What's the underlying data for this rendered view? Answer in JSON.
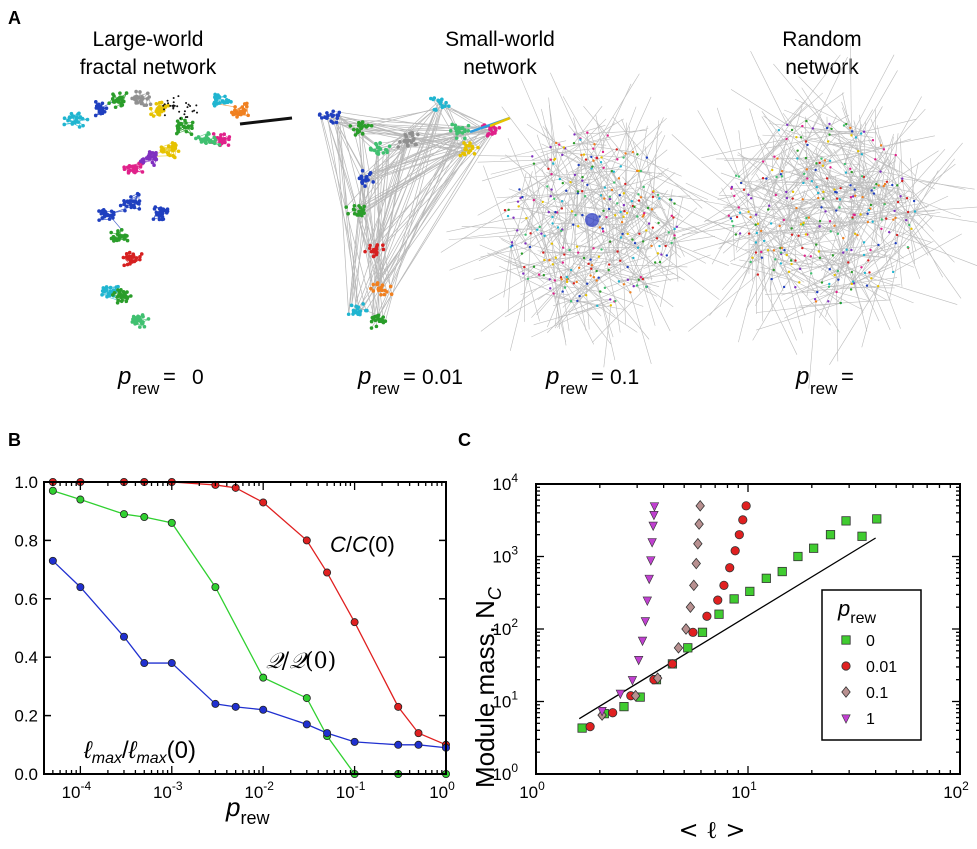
{
  "panel_labels": {
    "a": "A",
    "b": "B",
    "c": "C"
  },
  "panel_a": {
    "networks": [
      {
        "title_line1": "Large-world",
        "title_line2": "fractal network",
        "p_symbol": "p",
        "p_sub": "rew",
        "p_eq": "=",
        "p_value": "0"
      },
      {
        "title_line1": "Small-world",
        "title_line2": "network",
        "p_symbol": "p",
        "p_sub": "rew",
        "p_eq": "=",
        "p_value": "0.01"
      },
      {
        "title_line1": "",
        "title_line2": "",
        "p_symbol": "p",
        "p_sub": "rew",
        "p_eq": "=",
        "p_value": "0.1"
      },
      {
        "title_line1": "Random",
        "title_line2": "network",
        "p_symbol": "p",
        "p_sub": "rew",
        "p_eq": "=",
        "p_value": ""
      }
    ],
    "colors": [
      "#e0218a",
      "#2a9d2a",
      "#1f3fbf",
      "#d62020",
      "#20b5d0",
      "#e6c200",
      "#f08020",
      "#8030c0",
      "#40c070",
      "#909090"
    ]
  },
  "chart_data": [
    {
      "type": "line",
      "xscale": "log",
      "xlim": [
        4e-05,
        1
      ],
      "ylim": [
        0,
        1
      ],
      "xlabel": "p",
      "xlabel_sub": "rew",
      "ylabel": "",
      "xticks": [
        {
          "value": 0.0001,
          "base": "10",
          "exp": "-4"
        },
        {
          "value": 0.001,
          "base": "10",
          "exp": "-3"
        },
        {
          "value": 0.01,
          "base": "10",
          "exp": "-2"
        },
        {
          "value": 0.1,
          "base": "10",
          "exp": "-1"
        },
        {
          "value": 1,
          "base": "10",
          "exp": "0"
        }
      ],
      "yticks": [
        {
          "value": 0,
          "label": "0.0"
        },
        {
          "value": 0.2,
          "label": "0.2"
        },
        {
          "value": 0.4,
          "label": "0.4"
        },
        {
          "value": 0.6,
          "label": "0.6"
        },
        {
          "value": 0.8,
          "label": "0.8"
        },
        {
          "value": 1,
          "label": "1.0"
        }
      ],
      "series": [
        {
          "key": "C",
          "color": "#e02020",
          "x": [
            5e-05,
            0.0001,
            0.0003,
            0.0005,
            0.001,
            0.003,
            0.005,
            0.01,
            0.03,
            0.05,
            0.1,
            0.3,
            0.5,
            1
          ],
          "y": [
            1.0,
            1.0,
            1.0,
            1.0,
            1.0,
            0.99,
            0.98,
            0.93,
            0.8,
            0.69,
            0.52,
            0.23,
            0.14,
            0.1
          ]
        },
        {
          "key": "Q",
          "color": "#30d030",
          "x": [
            5e-05,
            0.0001,
            0.0003,
            0.0005,
            0.001,
            0.003,
            0.01,
            0.03,
            0.05,
            0.1,
            0.3,
            1
          ],
          "y": [
            0.97,
            0.94,
            0.89,
            0.88,
            0.86,
            0.64,
            0.33,
            0.26,
            0.13,
            0.0,
            0.0,
            0.0
          ]
        },
        {
          "key": "L",
          "color": "#2030d0",
          "x": [
            5e-05,
            0.0001,
            0.0003,
            0.0005,
            0.001,
            0.003,
            0.005,
            0.01,
            0.03,
            0.05,
            0.1,
            0.3,
            0.5,
            1
          ],
          "y": [
            0.73,
            0.64,
            0.47,
            0.38,
            0.38,
            0.24,
            0.23,
            0.22,
            0.17,
            0.14,
            0.11,
            0.1,
            0.1,
            0.09
          ]
        }
      ],
      "annotations": [
        {
          "key": "C",
          "parts": [
            "C",
            "/",
            "C",
            "(0)"
          ]
        },
        {
          "key": "Q",
          "parts": [
            "𝒬",
            "/",
            "𝒬",
            "(0)"
          ]
        },
        {
          "key": "L",
          "parts": [
            "ℓ",
            "max",
            "/",
            "ℓ",
            "max",
            "(0)"
          ]
        }
      ]
    },
    {
      "type": "scatter",
      "xscale": "log",
      "yscale": "log",
      "xlim": [
        1,
        100
      ],
      "ylim": [
        1,
        10000
      ],
      "xlabel": "< ℓ >",
      "ylabel": "Module mass, N",
      "ylabel_sub": "C",
      "xticks": [
        {
          "value": 1,
          "base": "10",
          "exp": "0"
        },
        {
          "value": 10,
          "base": "10",
          "exp": "1"
        },
        {
          "value": 100,
          "base": "10",
          "exp": "2"
        }
      ],
      "yticks": [
        {
          "value": 1,
          "base": "10",
          "exp": "0"
        },
        {
          "value": 10,
          "base": "10",
          "exp": "1"
        },
        {
          "value": 100,
          "base": "10",
          "exp": "2"
        },
        {
          "value": 1000,
          "base": "10",
          "exp": "3"
        },
        {
          "value": 10000,
          "base": "10",
          "exp": "4"
        }
      ],
      "legend": {
        "title": "p",
        "title_sub": "rew",
        "position": "right"
      },
      "series": [
        {
          "name": "0",
          "marker": "square",
          "color": "#40cc30",
          "x": [
            1.65,
            2.1,
            2.6,
            3.1,
            3.7,
            4.4,
            5.2,
            6.1,
            7.3,
            8.6,
            10.2,
            12.2,
            14.5,
            17.2,
            20.4,
            24.5,
            29,
            34.5,
            40.5
          ],
          "y": [
            4.3,
            6.8,
            8.5,
            11.5,
            20,
            33,
            55,
            90,
            160,
            260,
            330,
            500,
            620,
            1000,
            1300,
            2000,
            3100,
            1900,
            3300
          ]
        },
        {
          "name": "0.01",
          "marker": "circle",
          "color": "#e02020",
          "x": [
            1.8,
            2.3,
            2.8,
            3.6,
            4.4,
            5.5,
            6.4,
            7.2,
            7.7,
            8.2,
            8.7,
            9.1,
            9.45,
            9.8
          ],
          "y": [
            4.5,
            7,
            12,
            20,
            33,
            90,
            150,
            250,
            400,
            700,
            1200,
            2000,
            3200,
            5000
          ]
        },
        {
          "name": "0.1",
          "marker": "diamond",
          "color": "#b89090",
          "x": [
            2.05,
            2.95,
            3.75,
            4.7,
            5.1,
            5.35,
            5.55,
            5.7,
            5.8,
            5.88,
            5.95
          ],
          "y": [
            6.5,
            12,
            21,
            55,
            100,
            200,
            400,
            800,
            1500,
            2800,
            5000
          ]
        },
        {
          "name": "1",
          "marker": "triangle",
          "color": "#c040d0",
          "x": [
            2.05,
            2.5,
            2.85,
            3.05,
            3.18,
            3.28,
            3.35,
            3.42,
            3.48,
            3.53,
            3.57,
            3.6,
            3.62
          ],
          "y": [
            7.5,
            13,
            20,
            38,
            70,
            130,
            250,
            500,
            900,
            1600,
            2700,
            3800,
            5000
          ]
        }
      ],
      "fit_line": {
        "x": [
          1.6,
          40
        ],
        "y": [
          5.8,
          1800
        ]
      }
    }
  ]
}
